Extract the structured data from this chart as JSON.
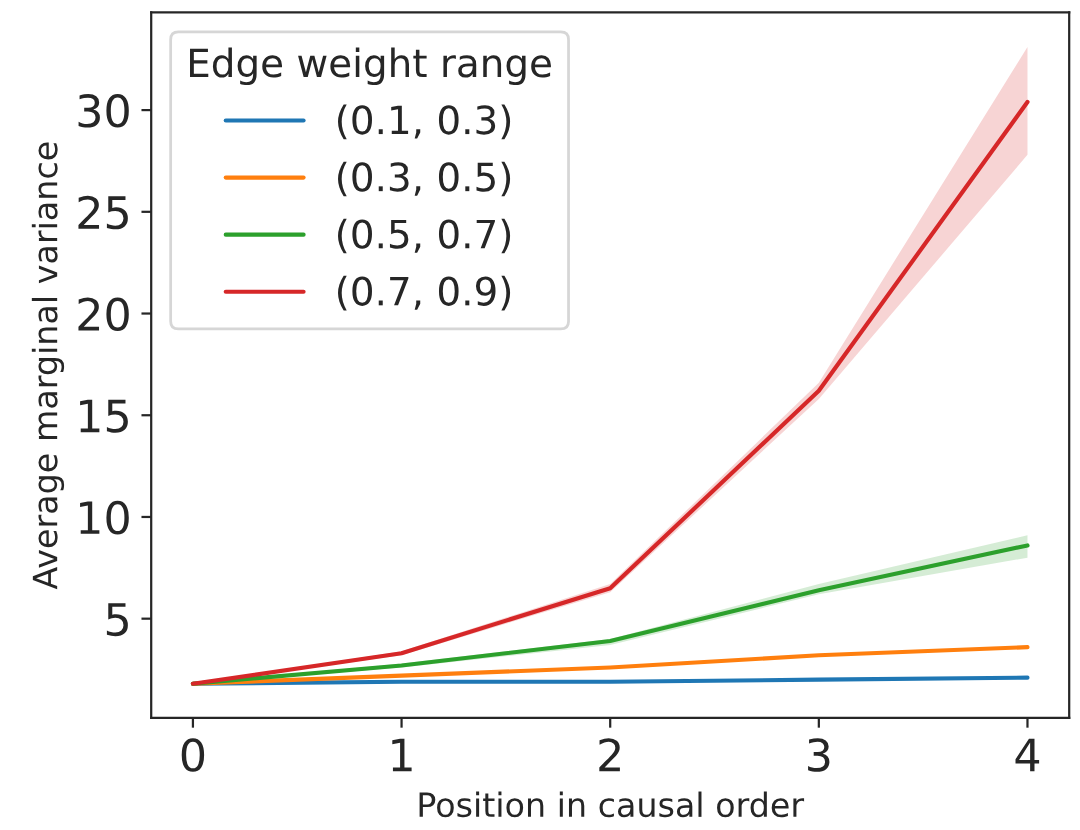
{
  "chart_data": {
    "type": "line",
    "xlabel": "Position in causal order",
    "ylabel": "Average marginal variance",
    "legend_title": "Edge weight range",
    "x": [
      0,
      1,
      2,
      3,
      4
    ],
    "series": [
      {
        "name": "(0.1, 0.3)",
        "color": "#1f77b4",
        "values": [
          1.8,
          1.9,
          1.9,
          2.0,
          2.1
        ]
      },
      {
        "name": "(0.3, 0.5)",
        "color": "#ff7f0e",
        "values": [
          1.8,
          2.2,
          2.6,
          3.2,
          3.6
        ]
      },
      {
        "name": "(0.5, 0.7)",
        "color": "#2ca02c",
        "values": [
          1.8,
          2.7,
          3.9,
          6.4,
          8.6
        ],
        "lower": [
          1.8,
          2.6,
          3.7,
          6.2,
          8.0
        ],
        "upper": [
          1.8,
          2.8,
          4.0,
          6.7,
          9.1
        ]
      },
      {
        "name": "(0.7, 0.9)",
        "color": "#d62728",
        "values": [
          1.8,
          3.3,
          6.5,
          16.2,
          30.4
        ],
        "lower": [
          1.8,
          3.2,
          6.3,
          15.8,
          27.8
        ],
        "upper": [
          1.8,
          3.4,
          6.7,
          16.6,
          33.1
        ]
      }
    ],
    "xlim": [
      -0.2,
      4.2
    ],
    "ylim": [
      0.12,
      34.8
    ],
    "xticks": [
      0,
      1,
      2,
      3,
      4
    ],
    "yticks": [
      5,
      10,
      15,
      20,
      25,
      30
    ],
    "grid": false,
    "legend": "top left"
  }
}
